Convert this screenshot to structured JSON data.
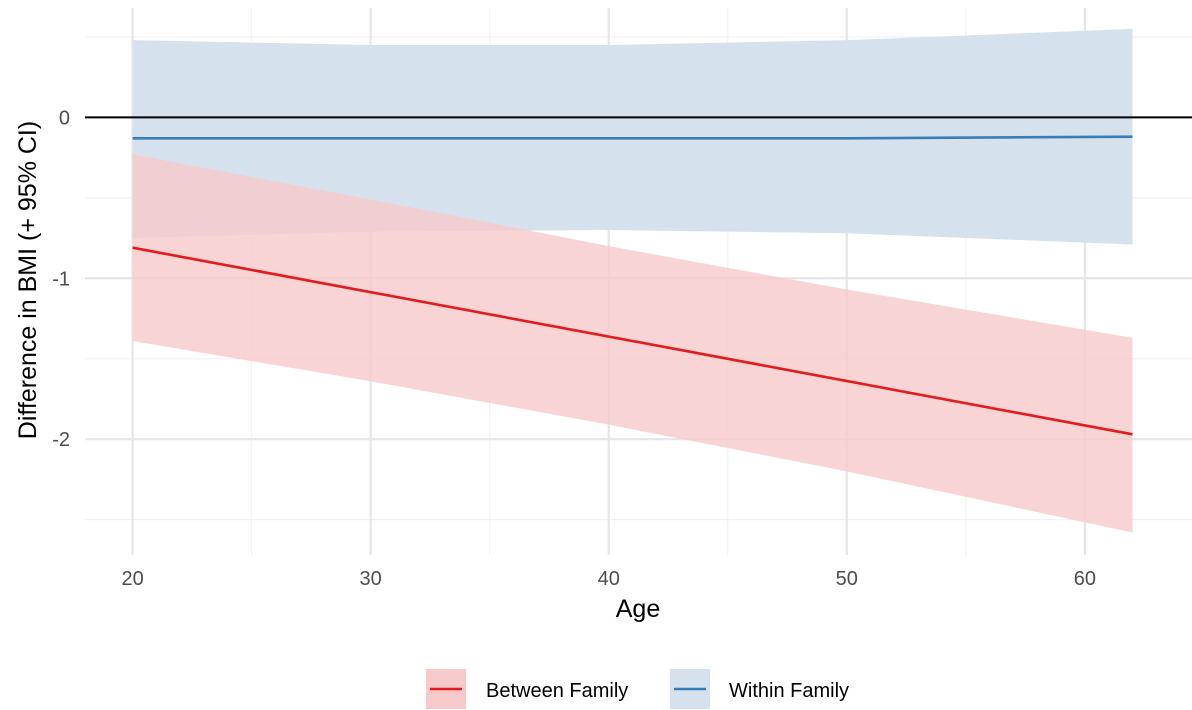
{
  "chart_data": {
    "type": "line",
    "xlabel": "Age",
    "ylabel": "Difference in BMI (+ 95% CI)",
    "xlim": [
      18,
      64.5
    ],
    "ylim": [
      -2.72,
      0.68
    ],
    "x_ticks": [
      20,
      30,
      40,
      50,
      60
    ],
    "x_tick_labels": [
      "20",
      "30",
      "40",
      "50",
      "60"
    ],
    "y_ticks": [
      0,
      -1,
      -2
    ],
    "y_tick_labels": [
      "0",
      "-1",
      "-2"
    ],
    "x_minor_ticks": [
      25,
      35,
      45,
      55
    ],
    "y_minor_ticks": [
      0.5,
      -0.5,
      -1.5,
      -2.5
    ],
    "grid": true,
    "reference_line": {
      "y": 0,
      "color": "#000000"
    },
    "legend_position": "bottom",
    "series": [
      {
        "name": "Between Family",
        "color": "#e41a1c",
        "fill": "#f8c9ca",
        "x": [
          20,
          62
        ],
        "y": [
          -0.81,
          -1.97
        ],
        "ci_x": [
          20,
          30,
          40,
          50,
          62
        ],
        "ci_lower": [
          -1.39,
          -1.64,
          -1.91,
          -2.2,
          -2.58
        ],
        "ci_upper": [
          -0.23,
          -0.51,
          -0.8,
          -1.07,
          -1.37
        ]
      },
      {
        "name": "Within Family",
        "color": "#377eb8",
        "fill": "#d5e2ee",
        "x": [
          20,
          30,
          40,
          50,
          62
        ],
        "y": [
          -0.13,
          -0.13,
          -0.13,
          -0.13,
          -0.12
        ],
        "ci_x": [
          20,
          30,
          40,
          50,
          62
        ],
        "ci_lower": [
          -0.75,
          -0.71,
          -0.7,
          -0.72,
          -0.79
        ],
        "ci_upper": [
          0.48,
          0.45,
          0.45,
          0.48,
          0.55
        ]
      }
    ]
  }
}
